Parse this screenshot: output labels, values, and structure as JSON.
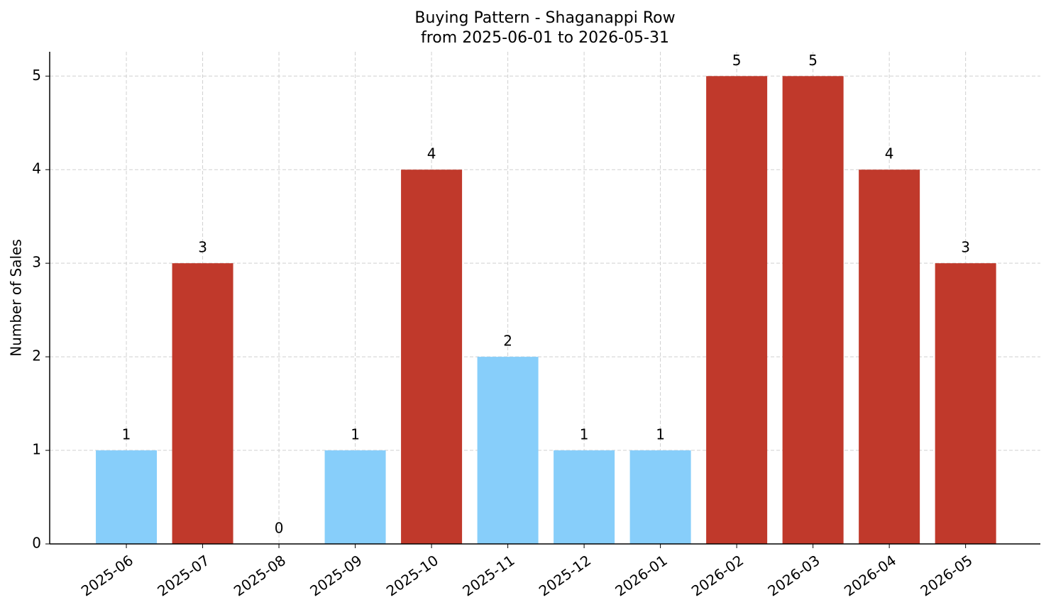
{
  "chart_data": {
    "type": "bar",
    "title": "Buying Pattern - Shaganappi Row",
    "subtitle": "from 2025-06-01 to 2026-05-31",
    "y_label": "Number of Sales",
    "categories": [
      "2025-06",
      "2025-07",
      "2025-08",
      "2025-09",
      "2025-10",
      "2025-11",
      "2025-12",
      "2026-01",
      "2026-02",
      "2026-03",
      "2026-04",
      "2026-05"
    ],
    "values": [
      1,
      3,
      0,
      1,
      4,
      2,
      1,
      1,
      5,
      5,
      4,
      3
    ],
    "colors": [
      "#87cefa",
      "#c0392b",
      "#87cefa",
      "#87cefa",
      "#c0392b",
      "#87cefa",
      "#87cefa",
      "#87cefa",
      "#c0392b",
      "#c0392b",
      "#c0392b",
      "#c0392b"
    ],
    "ylim": [
      0,
      5.26
    ],
    "yticks": [
      0,
      1,
      2,
      3,
      4,
      5
    ],
    "grid": true
  }
}
